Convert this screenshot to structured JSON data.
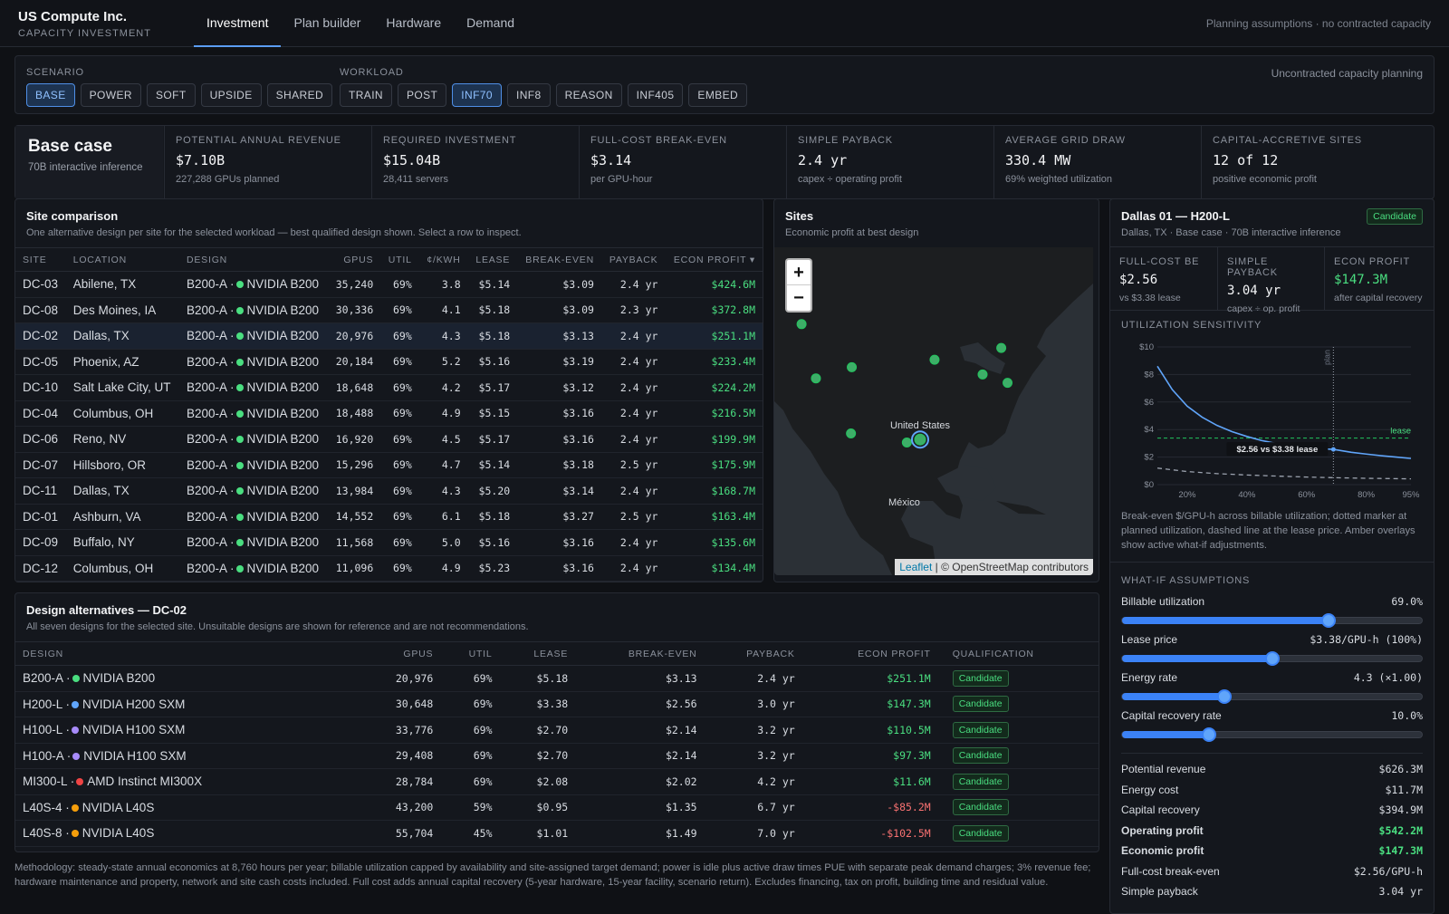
{
  "brand": {
    "title": "US Compute Inc.",
    "subtitle": "CAPACITY INVESTMENT"
  },
  "nav": [
    "Investment",
    "Plan builder",
    "Hardware",
    "Demand"
  ],
  "topnote": "Planning assumptions · no contracted capacity",
  "filters": {
    "scenario_label": "SCENARIO",
    "scenarios": [
      "BASE",
      "POWER",
      "SOFT",
      "UPSIDE",
      "SHARED"
    ],
    "workload_label": "WORKLOAD",
    "workloads": [
      "TRAIN",
      "POST",
      "INF70",
      "INF8",
      "REASON",
      "INF405",
      "EMBED"
    ],
    "note": "Uncontracted capacity planning"
  },
  "case": {
    "title": "Base case",
    "subtitle": "70B interactive inference"
  },
  "kpis": [
    {
      "label": "POTENTIAL ANNUAL REVENUE",
      "value": "$7.10B",
      "sub": "227,288 GPUs planned"
    },
    {
      "label": "REQUIRED INVESTMENT",
      "value": "$15.04B",
      "sub": "28,411 servers"
    },
    {
      "label": "FULL-COST BREAK-EVEN",
      "value": "$3.14",
      "sub": "per GPU-hour"
    },
    {
      "label": "SIMPLE PAYBACK",
      "value": "2.4 yr",
      "sub": "capex ÷ operating profit"
    },
    {
      "label": "AVERAGE GRID DRAW",
      "value": "330.4 MW",
      "sub": "69% weighted utilization"
    },
    {
      "label": "CAPITAL-ACCRETIVE SITES",
      "value": "12 of 12",
      "sub": "positive economic profit"
    }
  ],
  "sites": {
    "title": "Site comparison",
    "subtitle": "One alternative design per site for the selected workload — best qualified design shown. Select a row to inspect.",
    "headers": [
      "SITE",
      "LOCATION",
      "DESIGN",
      "GPUS",
      "UTIL",
      "¢/KWH",
      "LEASE",
      "BREAK-EVEN",
      "PAYBACK",
      "ECON PROFIT ▾"
    ],
    "rows": [
      [
        "DC-03",
        "Abilene, TX",
        "B200-A ·",
        "NVIDIA B200",
        "35,240",
        "69%",
        "3.8",
        "$5.14",
        "$3.09",
        "2.4 yr",
        "$424.6M"
      ],
      [
        "DC-08",
        "Des Moines, IA",
        "B200-A ·",
        "NVIDIA B200",
        "30,336",
        "69%",
        "4.1",
        "$5.18",
        "$3.09",
        "2.3 yr",
        "$372.8M"
      ],
      [
        "DC-02",
        "Dallas, TX",
        "B200-A ·",
        "NVIDIA B200",
        "20,976",
        "69%",
        "4.3",
        "$5.18",
        "$3.13",
        "2.4 yr",
        "$251.1M"
      ],
      [
        "DC-05",
        "Phoenix, AZ",
        "B200-A ·",
        "NVIDIA B200",
        "20,184",
        "69%",
        "5.2",
        "$5.16",
        "$3.19",
        "2.4 yr",
        "$233.4M"
      ],
      [
        "DC-10",
        "Salt Lake City, UT",
        "B200-A ·",
        "NVIDIA B200",
        "18,648",
        "69%",
        "4.2",
        "$5.17",
        "$3.12",
        "2.4 yr",
        "$224.2M"
      ],
      [
        "DC-04",
        "Columbus, OH",
        "B200-A ·",
        "NVIDIA B200",
        "18,488",
        "69%",
        "4.9",
        "$5.15",
        "$3.16",
        "2.4 yr",
        "$216.5M"
      ],
      [
        "DC-06",
        "Reno, NV",
        "B200-A ·",
        "NVIDIA B200",
        "16,920",
        "69%",
        "4.5",
        "$5.17",
        "$3.16",
        "2.4 yr",
        "$199.9M"
      ],
      [
        "DC-07",
        "Hillsboro, OR",
        "B200-A ·",
        "NVIDIA B200",
        "15,296",
        "69%",
        "4.7",
        "$5.14",
        "$3.18",
        "2.5 yr",
        "$175.9M"
      ],
      [
        "DC-11",
        "Dallas, TX",
        "B200-A ·",
        "NVIDIA B200",
        "13,984",
        "69%",
        "4.3",
        "$5.20",
        "$3.14",
        "2.4 yr",
        "$168.7M"
      ],
      [
        "DC-01",
        "Ashburn, VA",
        "B200-A ·",
        "NVIDIA B200",
        "14,552",
        "69%",
        "6.1",
        "$5.18",
        "$3.27",
        "2.5 yr",
        "$163.4M"
      ],
      [
        "DC-09",
        "Buffalo, NY",
        "B200-A ·",
        "NVIDIA B200",
        "11,568",
        "69%",
        "5.0",
        "$5.16",
        "$3.16",
        "2.4 yr",
        "$135.6M"
      ],
      [
        "DC-12",
        "Columbus, OH",
        "B200-A ·",
        "NVIDIA B200",
        "11,096",
        "69%",
        "4.9",
        "$5.23",
        "$3.16",
        "2.4 yr",
        "$134.4M"
      ]
    ]
  },
  "map": {
    "title": "Sites",
    "subtitle": "Economic profit at best design",
    "label_us": "United States",
    "label_mx": "México",
    "attr_link": "Leaflet",
    "attr_rest": " | © OpenStreetMap contributors"
  },
  "design": {
    "title": "Design alternatives — DC-02",
    "subtitle": "All seven designs for the selected site. Unsuitable designs are shown for reference and are not recommendations.",
    "headers": [
      "DESIGN",
      "GPUS",
      "UTIL",
      "LEASE",
      "BREAK-EVEN",
      "PAYBACK",
      "ECON PROFIT",
      "QUALIFICATION"
    ],
    "rows": [
      [
        "B200-A ·",
        "NVIDIA B200",
        "#4ade80",
        "20,976",
        "69%",
        "$5.18",
        "$3.13",
        "2.4 yr",
        "$251.1M",
        "Candidate"
      ],
      [
        "H200-L ·",
        "NVIDIA H200 SXM",
        "#60a5fa",
        "30,648",
        "69%",
        "$3.38",
        "$2.56",
        "3.0 yr",
        "$147.3M",
        "Candidate"
      ],
      [
        "H100-L ·",
        "NVIDIA H100 SXM",
        "#a78bfa",
        "33,776",
        "69%",
        "$2.70",
        "$2.14",
        "3.2 yr",
        "$110.5M",
        "Candidate"
      ],
      [
        "H100-A ·",
        "NVIDIA H100 SXM",
        "#a78bfa",
        "29,408",
        "69%",
        "$2.70",
        "$2.14",
        "3.2 yr",
        "$97.3M",
        "Candidate"
      ],
      [
        "MI300-L ·",
        "AMD Instinct MI300X",
        "#ef4444",
        "28,784",
        "69%",
        "$2.08",
        "$2.02",
        "4.2 yr",
        "$11.6M",
        "Candidate"
      ],
      [
        "L40S-4 ·",
        "NVIDIA L40S",
        "#f59e0b",
        "43,200",
        "59%",
        "$0.95",
        "$1.35",
        "6.7 yr",
        "-$85.2M",
        "Candidate"
      ],
      [
        "L40S-8 ·",
        "NVIDIA L40S",
        "#f59e0b",
        "55,704",
        "45%",
        "$1.01",
        "$1.49",
        "7.0 yr",
        "-$102.5M",
        "Candidate"
      ]
    ]
  },
  "methodology": "Methodology: steady-state annual economics at 8,760 hours per year; billable utilization capped by availability and site-assigned target demand; power is idle plus active draw times PUE with separate peak demand charges; 3% revenue fee; hardware maintenance and property, network and site cash costs included. Full cost adds annual capital recovery (5-year hardware, 15-year facility, scenario return). Excludes financing, tax on profit, building time and residual value.",
  "detail": {
    "title": "Dallas 01 — H200-L",
    "subtitle": "Dallas, TX · Base case · 70B interactive inference",
    "badge": "Candidate",
    "kpis": [
      {
        "label": "FULL-COST BE",
        "value": "$2.56",
        "sub": "vs $3.38 lease"
      },
      {
        "label": "SIMPLE PAYBACK",
        "value": "3.04 yr",
        "sub": "capex ÷ op. profit"
      },
      {
        "label": "ECON PROFIT",
        "value": "$147.3M",
        "sub": "after capital recovery"
      }
    ],
    "sens_label": "UTILIZATION SENSITIVITY",
    "sens_caption": "Break-even $/GPU-h across billable utilization; dotted marker at planned utilization, dashed line at the lease price. Amber overlays show active what-if adjustments.",
    "whatif_label": "WHAT-IF ASSUMPTIONS",
    "sliders": [
      {
        "label": "Billable utilization",
        "value": "69.0%",
        "level": 0.69
      },
      {
        "label": "Lease price",
        "value": "$3.38/GPU-h (100%)",
        "level": 0.5
      },
      {
        "label": "Energy rate",
        "value": "4.3 (×1.00)",
        "level": 0.34
      },
      {
        "label": "Capital recovery rate",
        "value": "10.0%",
        "level": 0.29
      }
    ],
    "summary": [
      {
        "label": "Potential revenue",
        "value": "$626.3M",
        "bold": false,
        "pos": false
      },
      {
        "label": "Energy cost",
        "value": "$11.7M",
        "bold": false,
        "pos": false
      },
      {
        "label": "Capital recovery",
        "value": "$394.9M",
        "bold": false,
        "pos": false
      },
      {
        "label": "Operating profit",
        "value": "$542.2M",
        "bold": true,
        "pos": true
      },
      {
        "label": "Economic profit",
        "value": "$147.3M",
        "bold": true,
        "pos": true
      },
      {
        "label": "Full-cost break-even",
        "value": "$2.56/GPU-h",
        "bold": false,
        "pos": false
      },
      {
        "label": "Simple payback",
        "value": "3.04 yr",
        "bold": false,
        "pos": false
      }
    ]
  },
  "chart_data": {
    "type": "line",
    "xlabel": "",
    "ylabel": "",
    "x_ticks": [
      "20%",
      "40%",
      "60%",
      "80%",
      "95%"
    ],
    "y_ticks": [
      "$0",
      "$2",
      "$4",
      "$6",
      "$8",
      "$10"
    ],
    "xlim": [
      10,
      95
    ],
    "ylim": [
      0,
      10
    ],
    "series": [
      {
        "x": [
          10,
          15,
          20,
          25,
          30,
          35,
          40,
          45,
          50,
          55,
          60,
          65,
          69,
          75,
          80,
          85,
          90,
          95
        ],
        "values": [
          8.6,
          6.9,
          5.7,
          4.9,
          4.3,
          3.85,
          3.5,
          3.2,
          2.98,
          2.8,
          2.7,
          2.6,
          2.56,
          2.35,
          2.22,
          2.1,
          2.0,
          1.9
        ]
      },
      {
        "x": [
          10,
          20,
          30,
          40,
          50,
          60,
          70,
          80,
          95
        ],
        "values": [
          1.2,
          0.95,
          0.8,
          0.7,
          0.62,
          0.55,
          0.5,
          0.46,
          0.42
        ]
      }
    ],
    "lease": 3.38,
    "lease_label": "lease",
    "plan_x": 69,
    "plan_label": "plan",
    "marker_label": "$2.56 vs $3.38 lease"
  },
  "map_points": [
    {
      "lon": -122.98,
      "lat": 45.52
    },
    {
      "lon": -119.81,
      "lat": 39.53
    },
    {
      "lon": -111.89,
      "lat": 40.76
    },
    {
      "lon": -112.07,
      "lat": 33.45
    },
    {
      "lon": -99.73,
      "lat": 32.45
    },
    {
      "lon": -96.8,
      "lat": 32.78,
      "sel": true
    },
    {
      "lon": -93.61,
      "lat": 41.59
    },
    {
      "lon": -83.0,
      "lat": 39.96
    },
    {
      "lon": -78.88,
      "lat": 42.89
    },
    {
      "lon": -77.49,
      "lat": 39.04
    }
  ]
}
